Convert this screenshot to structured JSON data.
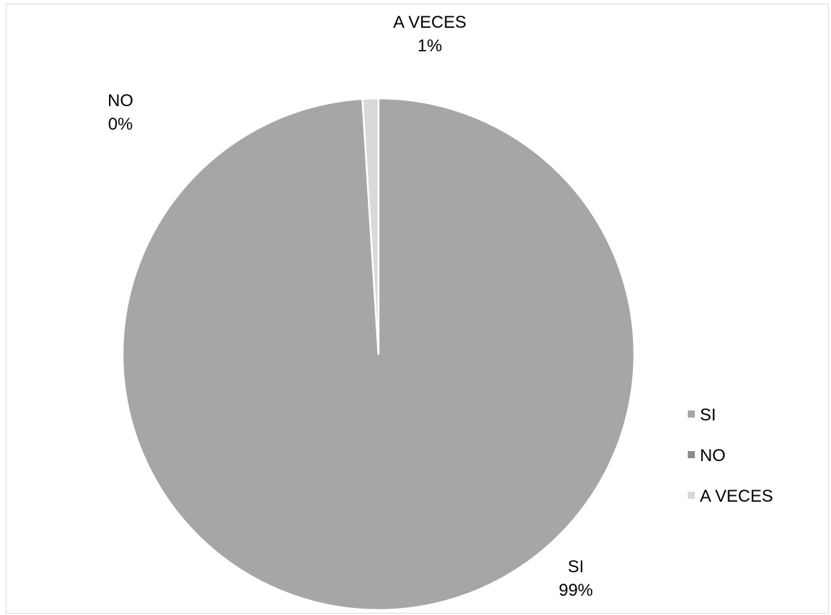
{
  "chart_data": {
    "type": "pie",
    "title": "",
    "slices": [
      {
        "category": "SI",
        "value": 99,
        "data_label": "99%",
        "color": "#a6a6a6"
      },
      {
        "category": "NO",
        "value": 0,
        "data_label": "0%",
        "color": "#8c8c8c"
      },
      {
        "category": "A VECES",
        "value": 1,
        "data_label": "1%",
        "color": "#d9d9d9"
      }
    ],
    "legend": {
      "position": "right",
      "items": [
        "SI",
        "NO",
        "A VECES"
      ]
    }
  }
}
